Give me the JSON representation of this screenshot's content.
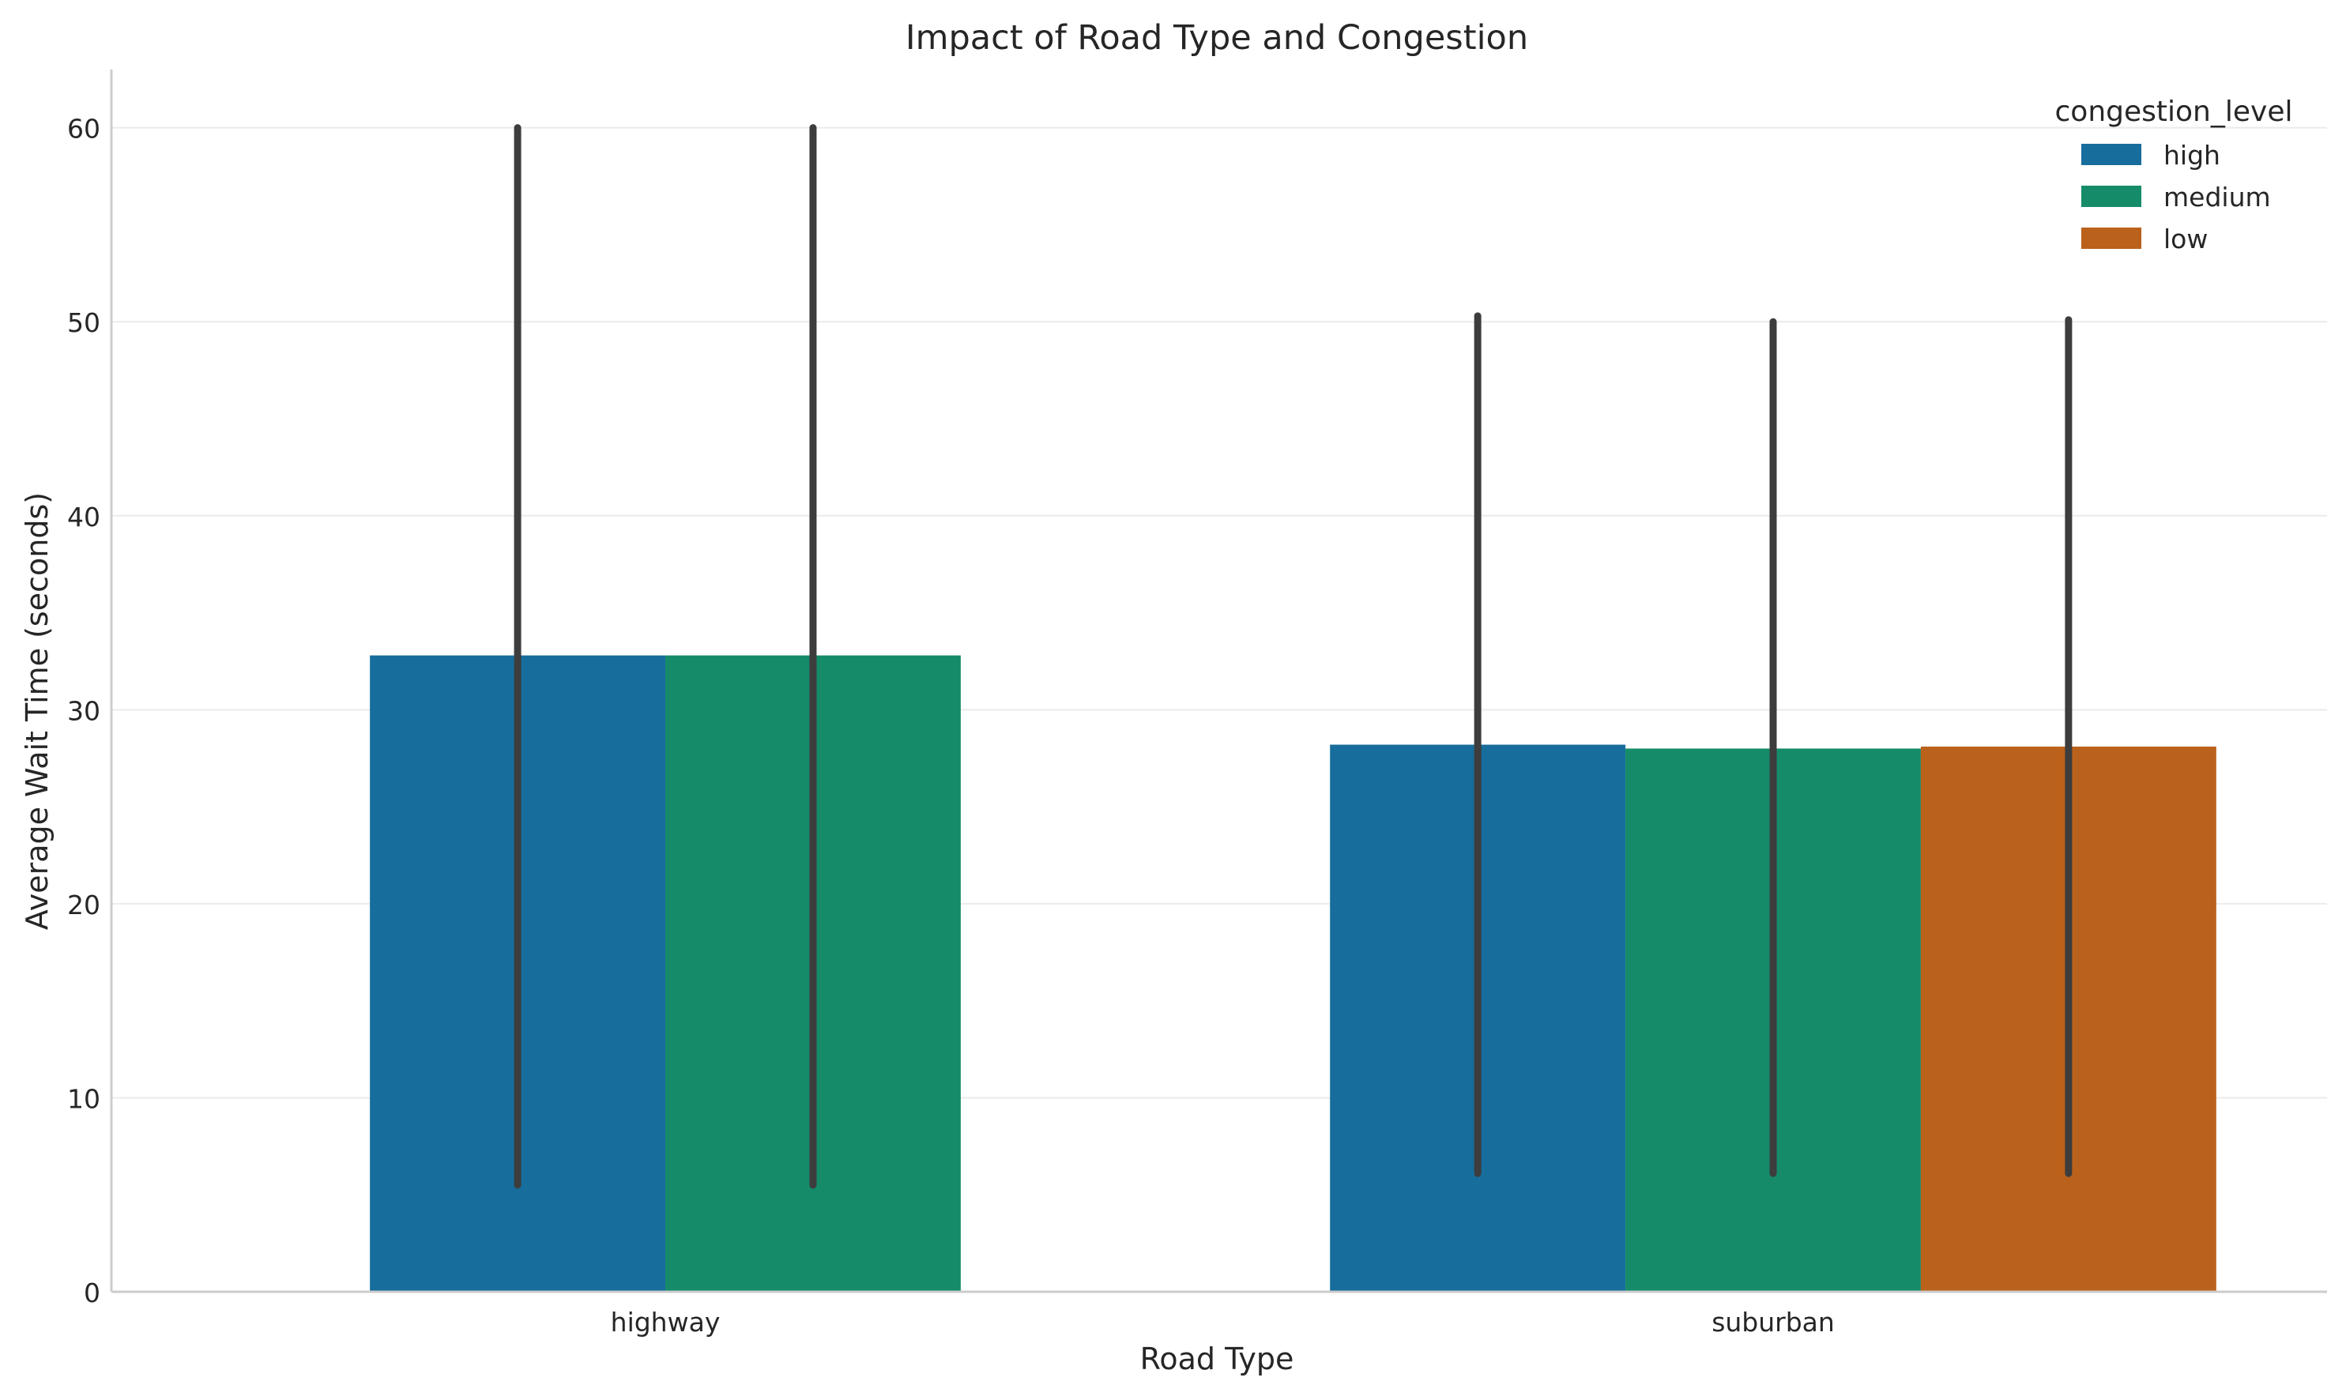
{
  "chart_data": {
    "type": "bar",
    "title": "Impact of Road Type and Congestion",
    "xlabel": "Road Type",
    "ylabel": "Average Wait Time (seconds)",
    "categories": [
      "highway",
      "suburban"
    ],
    "ylim": [
      0,
      63
    ],
    "yticks": [
      0,
      10,
      20,
      30,
      40,
      50,
      60
    ],
    "grid": "horizontal",
    "legend": {
      "title": "congestion_level",
      "placement": "top-right"
    },
    "series": [
      {
        "name": "high",
        "color": "#176d9c",
        "values": [
          32.8,
          28.2
        ],
        "error": [
          [
            5.5,
            60.0
          ],
          [
            6.1,
            50.3
          ]
        ]
      },
      {
        "name": "medium",
        "color": "#158b6a",
        "values": [
          32.8,
          28.0
        ],
        "error": [
          [
            5.5,
            60.0
          ],
          [
            6.1,
            50.0
          ]
        ]
      },
      {
        "name": "low",
        "color": "#ba611b",
        "values": [
          null,
          28.1
        ],
        "error": [
          null,
          [
            6.1,
            50.1
          ]
        ]
      }
    ],
    "error_bar_color": "#3d3d3d"
  }
}
